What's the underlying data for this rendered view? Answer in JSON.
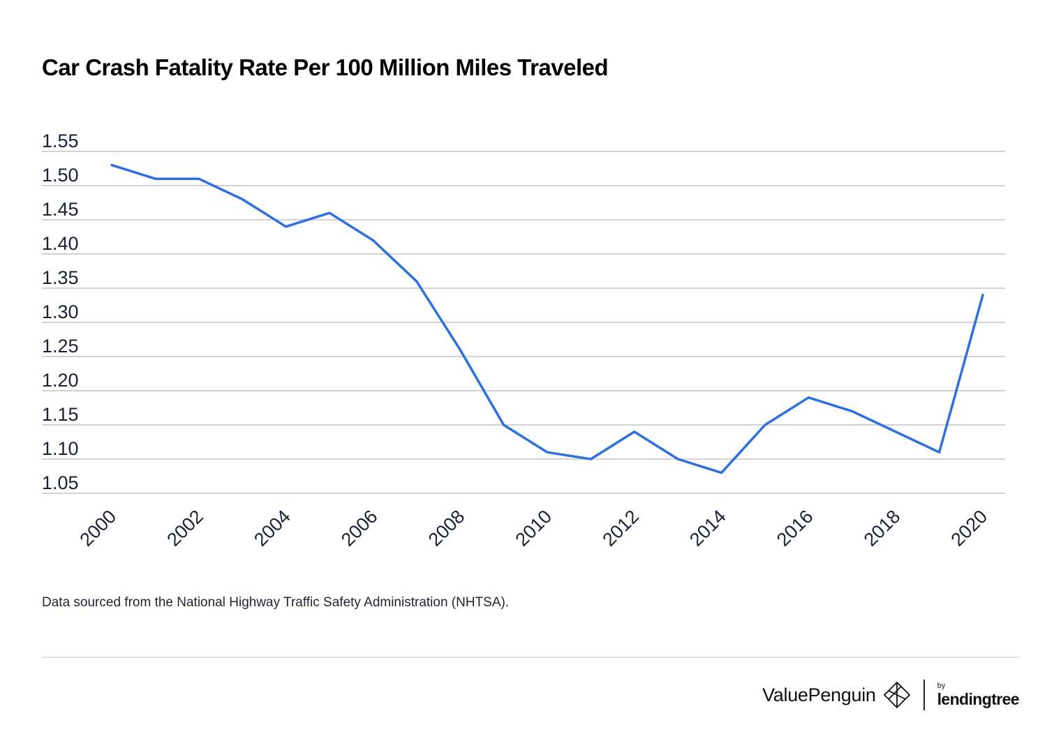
{
  "chart_data": {
    "type": "line",
    "title": "Car Crash Fatality Rate Per 100 Million Miles Traveled",
    "xlabel": "",
    "ylabel": "",
    "x": [
      2000,
      2001,
      2002,
      2003,
      2004,
      2005,
      2006,
      2007,
      2008,
      2009,
      2010,
      2011,
      2012,
      2013,
      2014,
      2015,
      2016,
      2017,
      2018,
      2019,
      2020
    ],
    "series": [
      {
        "name": "Fatality rate",
        "color": "#2b6fe0",
        "values": [
          1.53,
          1.51,
          1.51,
          1.48,
          1.44,
          1.46,
          1.42,
          1.36,
          1.26,
          1.15,
          1.11,
          1.1,
          1.14,
          1.1,
          1.08,
          1.15,
          1.19,
          1.17,
          1.14,
          1.11,
          1.34
        ]
      }
    ],
    "ylim": [
      1.05,
      1.55
    ],
    "yticks": [
      "1.55",
      "1.50",
      "1.45",
      "1.40",
      "1.35",
      "1.30",
      "1.25",
      "1.20",
      "1.15",
      "1.10",
      "1.05"
    ],
    "xticks": [
      "2000",
      "2002",
      "2004",
      "2006",
      "2008",
      "2010",
      "2012",
      "2014",
      "2016",
      "2018",
      "2020"
    ],
    "grid": true
  },
  "source_note": "Data sourced from the National Highway Traffic Safety Administration (NHTSA).",
  "brand": {
    "name": "ValuePenguin",
    "by": "by",
    "partner": "lendingtree"
  }
}
